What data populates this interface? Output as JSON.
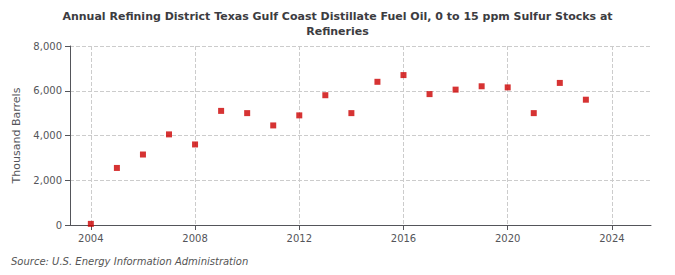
{
  "chart_data": {
    "type": "scatter",
    "title": "Annual Refining District Texas Gulf Coast Distillate Fuel Oil, 0 to 15 ppm Sulfur Stocks at\nRefineries",
    "ylabel": "Thousand Barrels",
    "annotation": "Source: U.S. Energy Information Administration",
    "x": [
      2004,
      2005,
      2006,
      2007,
      2008,
      2009,
      2010,
      2011,
      2012,
      2013,
      2014,
      2015,
      2016,
      2017,
      2018,
      2019,
      2020,
      2021,
      2022,
      2023
    ],
    "values": [
      50,
      2550,
      3150,
      4050,
      3600,
      5100,
      5000,
      4450,
      4900,
      5800,
      5000,
      6400,
      6700,
      5850,
      6050,
      6200,
      6150,
      5000,
      6350,
      5600
    ],
    "color": "#cc0000",
    "marker": "square",
    "xlim": [
      2003.2,
      2025.5
    ],
    "xticks": [
      2004,
      2008,
      2012,
      2016,
      2020,
      2024
    ],
    "ylim": [
      0,
      8000
    ],
    "yticks": [
      0,
      {
        "value": 2000,
        "label": "2,000"
      },
      {
        "value": 4000,
        "label": "4,000"
      },
      {
        "value": 6000,
        "label": "6,000"
      },
      {
        "value": 8000,
        "label": "8,000"
      }
    ],
    "grid": true
  }
}
